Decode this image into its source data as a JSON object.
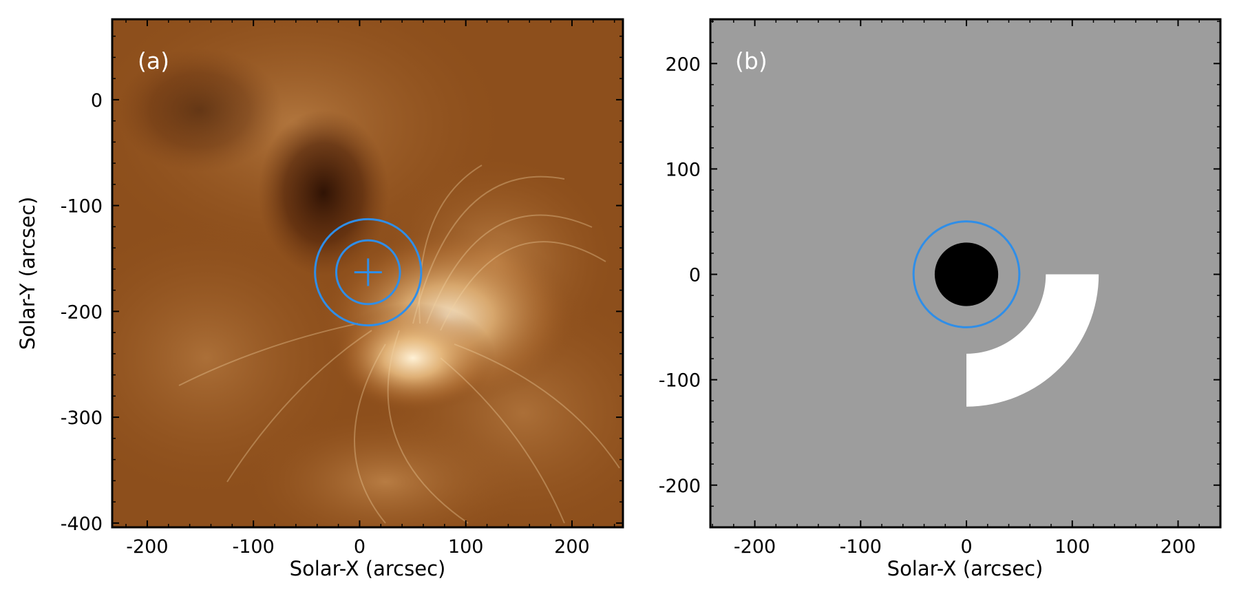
{
  "chart_data": [
    {
      "type": "heatmap",
      "panel_label": "(a)",
      "xlabel": "Solar-X (arcsec)",
      "ylabel": "Solar-Y (arcsec)",
      "xlim": [
        -233,
        248
      ],
      "ylim": [
        -404,
        76
      ],
      "x_ticks": [
        -200,
        -100,
        0,
        100,
        200
      ],
      "y_ticks": [
        0,
        -100,
        -200,
        -300,
        -400
      ],
      "x_tick_labels": [
        "-200",
        "-100",
        "0",
        "100",
        "200"
      ],
      "y_tick_labels": [
        "0",
        "-100",
        "-200",
        "-300",
        "-400"
      ],
      "image_colormap": "copper / AIA 193-like brown",
      "overlays": {
        "center": [
          8,
          -163
        ],
        "inner_circle_radius": 30,
        "outer_circle_radius": 50,
        "cross_half_size": 13,
        "color": "#2f8ee8"
      }
    },
    {
      "type": "heatmap",
      "panel_label": "(b)",
      "xlabel": "Solar-X (arcsec)",
      "ylabel": "",
      "xlim": [
        -242,
        240
      ],
      "ylim": [
        -240,
        242
      ],
      "x_ticks": [
        -200,
        -100,
        0,
        100,
        200
      ],
      "y_ticks": [
        200,
        100,
        0,
        -100,
        -200
      ],
      "x_tick_labels": [
        "-200",
        "-100",
        "0",
        "100",
        "200"
      ],
      "y_tick_labels": [
        "200",
        "100",
        "0",
        "-100",
        "-200"
      ],
      "background_color": "#9d9d9d",
      "mask": {
        "center": [
          0,
          0
        ],
        "disk_radius": 30,
        "disk_color": "#000000",
        "annulus_sector": {
          "inner_radius": 75,
          "outer_radius": 125,
          "angle_from_deg": 0,
          "angle_to_deg": -90,
          "color": "#ffffff"
        }
      },
      "overlays": {
        "circle_center": [
          0,
          0
        ],
        "circle_radius": 50,
        "color": "#2f8ee8"
      }
    }
  ]
}
